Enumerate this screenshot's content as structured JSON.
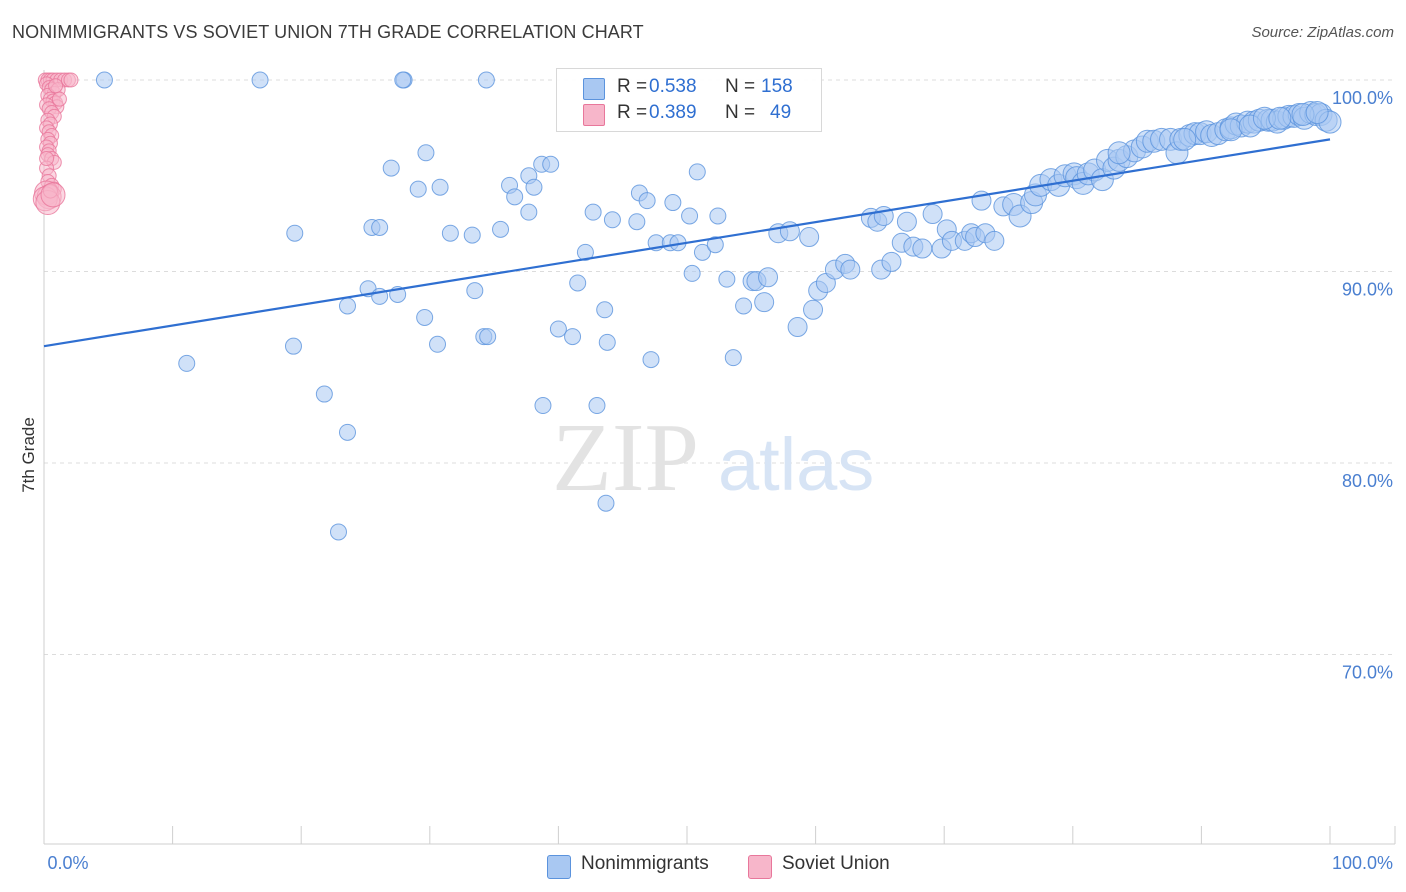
{
  "header": {
    "title": "NONIMMIGRANTS VS SOVIET UNION 7TH GRADE CORRELATION CHART",
    "source": "Source: ZipAtlas.com"
  },
  "watermark": {
    "part1": "ZIP",
    "part2": "atlas"
  },
  "stats": {
    "rows": [
      {
        "r_label": "R = ",
        "r_value": "0.538",
        "n_label": "N = ",
        "n_value": "158",
        "color": "#a9c8f2"
      },
      {
        "r_label": "R = ",
        "r_value": "0.389",
        "n_label": "N = ",
        "n_value": "49",
        "color": "#f7b6ca"
      }
    ]
  },
  "legend": {
    "items": [
      {
        "label": "Nonimmigrants",
        "color": "#a9c8f2"
      },
      {
        "label": "Soviet Union",
        "color": "#f7b6ca"
      }
    ]
  },
  "colors": {
    "blue_fill": "#a9c8f2",
    "blue_stroke": "#5b93dd",
    "pink_fill": "#f7b6ca",
    "pink_stroke": "#e8779b",
    "trend_line": "#2f6fd1",
    "grid": "#dcdcdc",
    "tick_text": "#4a7fd0"
  },
  "chart_data": {
    "type": "scatter",
    "title": "NONIMMIGRANTS VS SOVIET UNION 7TH GRADE CORRELATION CHART",
    "xlabel": "",
    "ylabel": "7th Grade",
    "xlim": [
      0,
      100
    ],
    "ylim": [
      60.5,
      101
    ],
    "x_tick_labels": [
      "0.0%",
      "100.0%"
    ],
    "y_ticks": [
      70,
      80,
      90,
      100
    ],
    "y_tick_labels": [
      "70.0%",
      "80.0%",
      "90.0%",
      "100.0%"
    ],
    "grid": "horizontal dashed",
    "legend_placement": "bottom-center",
    "series": [
      {
        "name": "Nonimmigrants",
        "r": 0.538,
        "n": 158,
        "trend": {
          "x": [
            0,
            100
          ],
          "y": [
            86.1,
            96.9
          ]
        },
        "points": [
          [
            4.7,
            100
          ],
          [
            16.8,
            100
          ],
          [
            28,
            100
          ],
          [
            27.9,
            100
          ],
          [
            34.4,
            100
          ],
          [
            11.1,
            85.2
          ],
          [
            19.5,
            92
          ],
          [
            19.4,
            86.1
          ],
          [
            21.8,
            83.6
          ],
          [
            23.6,
            81.6
          ],
          [
            22.9,
            76.4
          ],
          [
            23.6,
            88.2
          ],
          [
            25.2,
            89.1
          ],
          [
            25.5,
            92.3
          ],
          [
            26.1,
            92.3
          ],
          [
            26.1,
            88.7
          ],
          [
            27.5,
            88.8
          ],
          [
            27,
            95.4
          ],
          [
            29.1,
            94.3
          ],
          [
            29.6,
            87.6
          ],
          [
            29.7,
            96.2
          ],
          [
            30.6,
            86.2
          ],
          [
            30.8,
            94.4
          ],
          [
            31.6,
            92
          ],
          [
            33.3,
            91.9
          ],
          [
            33.5,
            89
          ],
          [
            34.2,
            86.6
          ],
          [
            34.5,
            86.6
          ],
          [
            35.5,
            92.2
          ],
          [
            36.2,
            94.5
          ],
          [
            36.6,
            93.9
          ],
          [
            37.7,
            93.1
          ],
          [
            37.7,
            95
          ],
          [
            38.1,
            94.4
          ],
          [
            38.7,
            95.6
          ],
          [
            39.4,
            95.6
          ],
          [
            38.8,
            83
          ],
          [
            40,
            87
          ],
          [
            41.1,
            86.6
          ],
          [
            41.5,
            89.4
          ],
          [
            42.1,
            91
          ],
          [
            42.7,
            93.1
          ],
          [
            43.6,
            88
          ],
          [
            43.8,
            86.3
          ],
          [
            43,
            83
          ],
          [
            43.7,
            77.9
          ],
          [
            44.2,
            92.7
          ],
          [
            46.1,
            92.6
          ],
          [
            46.3,
            94.1
          ],
          [
            46.9,
            93.7
          ],
          [
            47.2,
            85.4
          ],
          [
            47.6,
            91.5
          ],
          [
            48.7,
            91.5
          ],
          [
            48.9,
            93.6
          ],
          [
            49.3,
            91.5
          ],
          [
            50.2,
            92.9
          ],
          [
            50.8,
            95.2
          ],
          [
            50.4,
            89.9
          ],
          [
            51.2,
            91
          ],
          [
            52.2,
            91.4
          ],
          [
            52.4,
            92.9
          ],
          [
            53.1,
            89.6
          ],
          [
            53.6,
            85.5
          ],
          [
            54.4,
            88.2
          ],
          [
            55.1,
            89.5
          ],
          [
            55.4,
            89.5
          ],
          [
            56,
            88.4
          ],
          [
            56.3,
            89.7
          ],
          [
            57.1,
            92
          ],
          [
            58,
            92.1
          ],
          [
            58.6,
            87.1
          ],
          [
            59.5,
            91.8
          ],
          [
            59.8,
            88
          ],
          [
            60.2,
            89
          ],
          [
            60.8,
            89.4
          ],
          [
            61.5,
            90.1
          ],
          [
            62.3,
            90.4
          ],
          [
            62.7,
            90.1
          ],
          [
            64.3,
            92.8
          ],
          [
            64.8,
            92.6
          ],
          [
            65.3,
            92.9
          ],
          [
            65.1,
            90.1
          ],
          [
            65.9,
            90.5
          ],
          [
            66.7,
            91.5
          ],
          [
            67.1,
            92.6
          ],
          [
            67.6,
            91.3
          ],
          [
            68.3,
            91.2
          ],
          [
            69.1,
            93
          ],
          [
            69.8,
            91.2
          ],
          [
            70.2,
            92.2
          ],
          [
            70.6,
            91.6
          ],
          [
            71.6,
            91.6
          ],
          [
            72.1,
            92
          ],
          [
            72.4,
            91.8
          ],
          [
            73.2,
            92
          ],
          [
            72.9,
            93.7
          ],
          [
            73.9,
            91.6
          ],
          [
            74.6,
            93.4
          ],
          [
            75.4,
            93.5
          ],
          [
            75.9,
            92.9
          ],
          [
            76.8,
            93.6
          ],
          [
            77.1,
            94
          ],
          [
            77.5,
            94.5
          ],
          [
            78.3,
            94.8
          ],
          [
            78.9,
            94.5
          ],
          [
            79.4,
            95
          ],
          [
            80.1,
            95.1
          ],
          [
            80.3,
            94.9
          ],
          [
            80.8,
            94.6
          ],
          [
            81.2,
            95.1
          ],
          [
            81.7,
            95.3
          ],
          [
            82.3,
            94.8
          ],
          [
            82.7,
            95.8
          ],
          [
            83.2,
            95.4
          ],
          [
            83.6,
            95.8
          ],
          [
            84.2,
            96
          ],
          [
            84.8,
            96.3
          ],
          [
            85.4,
            96.5
          ],
          [
            85.8,
            96.8
          ],
          [
            86.3,
            96.8
          ],
          [
            86.9,
            96.9
          ],
          [
            87.6,
            96.9
          ],
          [
            88.1,
            96.2
          ],
          [
            88.4,
            96.9
          ],
          [
            89.1,
            97.1
          ],
          [
            89.5,
            97.2
          ],
          [
            89.9,
            97.2
          ],
          [
            90.4,
            97.3
          ],
          [
            90.8,
            97.1
          ],
          [
            91.3,
            97.2
          ],
          [
            91.9,
            97.4
          ],
          [
            92.3,
            97.5
          ],
          [
            92.7,
            97.7
          ],
          [
            93.1,
            97.6
          ],
          [
            93.6,
            97.8
          ],
          [
            94.1,
            97.8
          ],
          [
            94.5,
            97.9
          ],
          [
            95.2,
            97.9
          ],
          [
            95.5,
            97.9
          ],
          [
            95.9,
            97.8
          ],
          [
            96.4,
            98
          ],
          [
            96.8,
            98.1
          ],
          [
            97.2,
            98.1
          ],
          [
            97.6,
            98.2
          ],
          [
            98,
            98
          ],
          [
            98.5,
            98.3
          ],
          [
            98.9,
            98.2
          ],
          [
            99.3,
            98.2
          ],
          [
            99.7,
            97.9
          ],
          [
            100,
            97.8
          ],
          [
            92.3,
            97.4
          ],
          [
            93.8,
            97.6
          ],
          [
            94.9,
            98
          ],
          [
            96.1,
            98
          ],
          [
            97.9,
            98.2
          ],
          [
            99,
            98.3
          ],
          [
            83.6,
            96.2
          ],
          [
            88.7,
            96.9
          ]
        ]
      },
      {
        "name": "Soviet Union",
        "r": 0.389,
        "n": 49,
        "points": [
          [
            0.1,
            100
          ],
          [
            0.3,
            100
          ],
          [
            0.5,
            100
          ],
          [
            0.7,
            100
          ],
          [
            1.0,
            100
          ],
          [
            1.3,
            100
          ],
          [
            1.6,
            100
          ],
          [
            1.9,
            100
          ],
          [
            2.1,
            100
          ],
          [
            0.2,
            99.8
          ],
          [
            0.4,
            99.6
          ],
          [
            0.6,
            99.5
          ],
          [
            0.8,
            99.3
          ],
          [
            1.1,
            99.5
          ],
          [
            0.3,
            99.2
          ],
          [
            0.5,
            99.0
          ],
          [
            0.7,
            98.9
          ],
          [
            0.9,
            98.8
          ],
          [
            1.0,
            98.6
          ],
          [
            0.2,
            98.7
          ],
          [
            0.4,
            98.5
          ],
          [
            0.6,
            98.3
          ],
          [
            0.8,
            98.1
          ],
          [
            0.3,
            97.9
          ],
          [
            0.5,
            97.7
          ],
          [
            0.2,
            97.5
          ],
          [
            0.4,
            97.3
          ],
          [
            0.6,
            97.1
          ],
          [
            0.3,
            96.9
          ],
          [
            0.5,
            96.7
          ],
          [
            0.2,
            96.5
          ],
          [
            0.4,
            96.3
          ],
          [
            0.3,
            96.1
          ],
          [
            0.6,
            95.9
          ],
          [
            0.8,
            95.7
          ],
          [
            0.2,
            95.4
          ],
          [
            0.4,
            95.0
          ],
          [
            0.3,
            94.7
          ],
          [
            0.6,
            94.5
          ],
          [
            0.8,
            94.3
          ],
          [
            0.2,
            94.1
          ],
          [
            0.4,
            93.9
          ],
          [
            0.1,
            93.8
          ],
          [
            0.3,
            93.6
          ],
          [
            0.5,
            94.2
          ],
          [
            0.7,
            94.0
          ],
          [
            0.2,
            95.9
          ],
          [
            1.2,
            99.0
          ],
          [
            0.9,
            99.7
          ]
        ]
      }
    ]
  }
}
